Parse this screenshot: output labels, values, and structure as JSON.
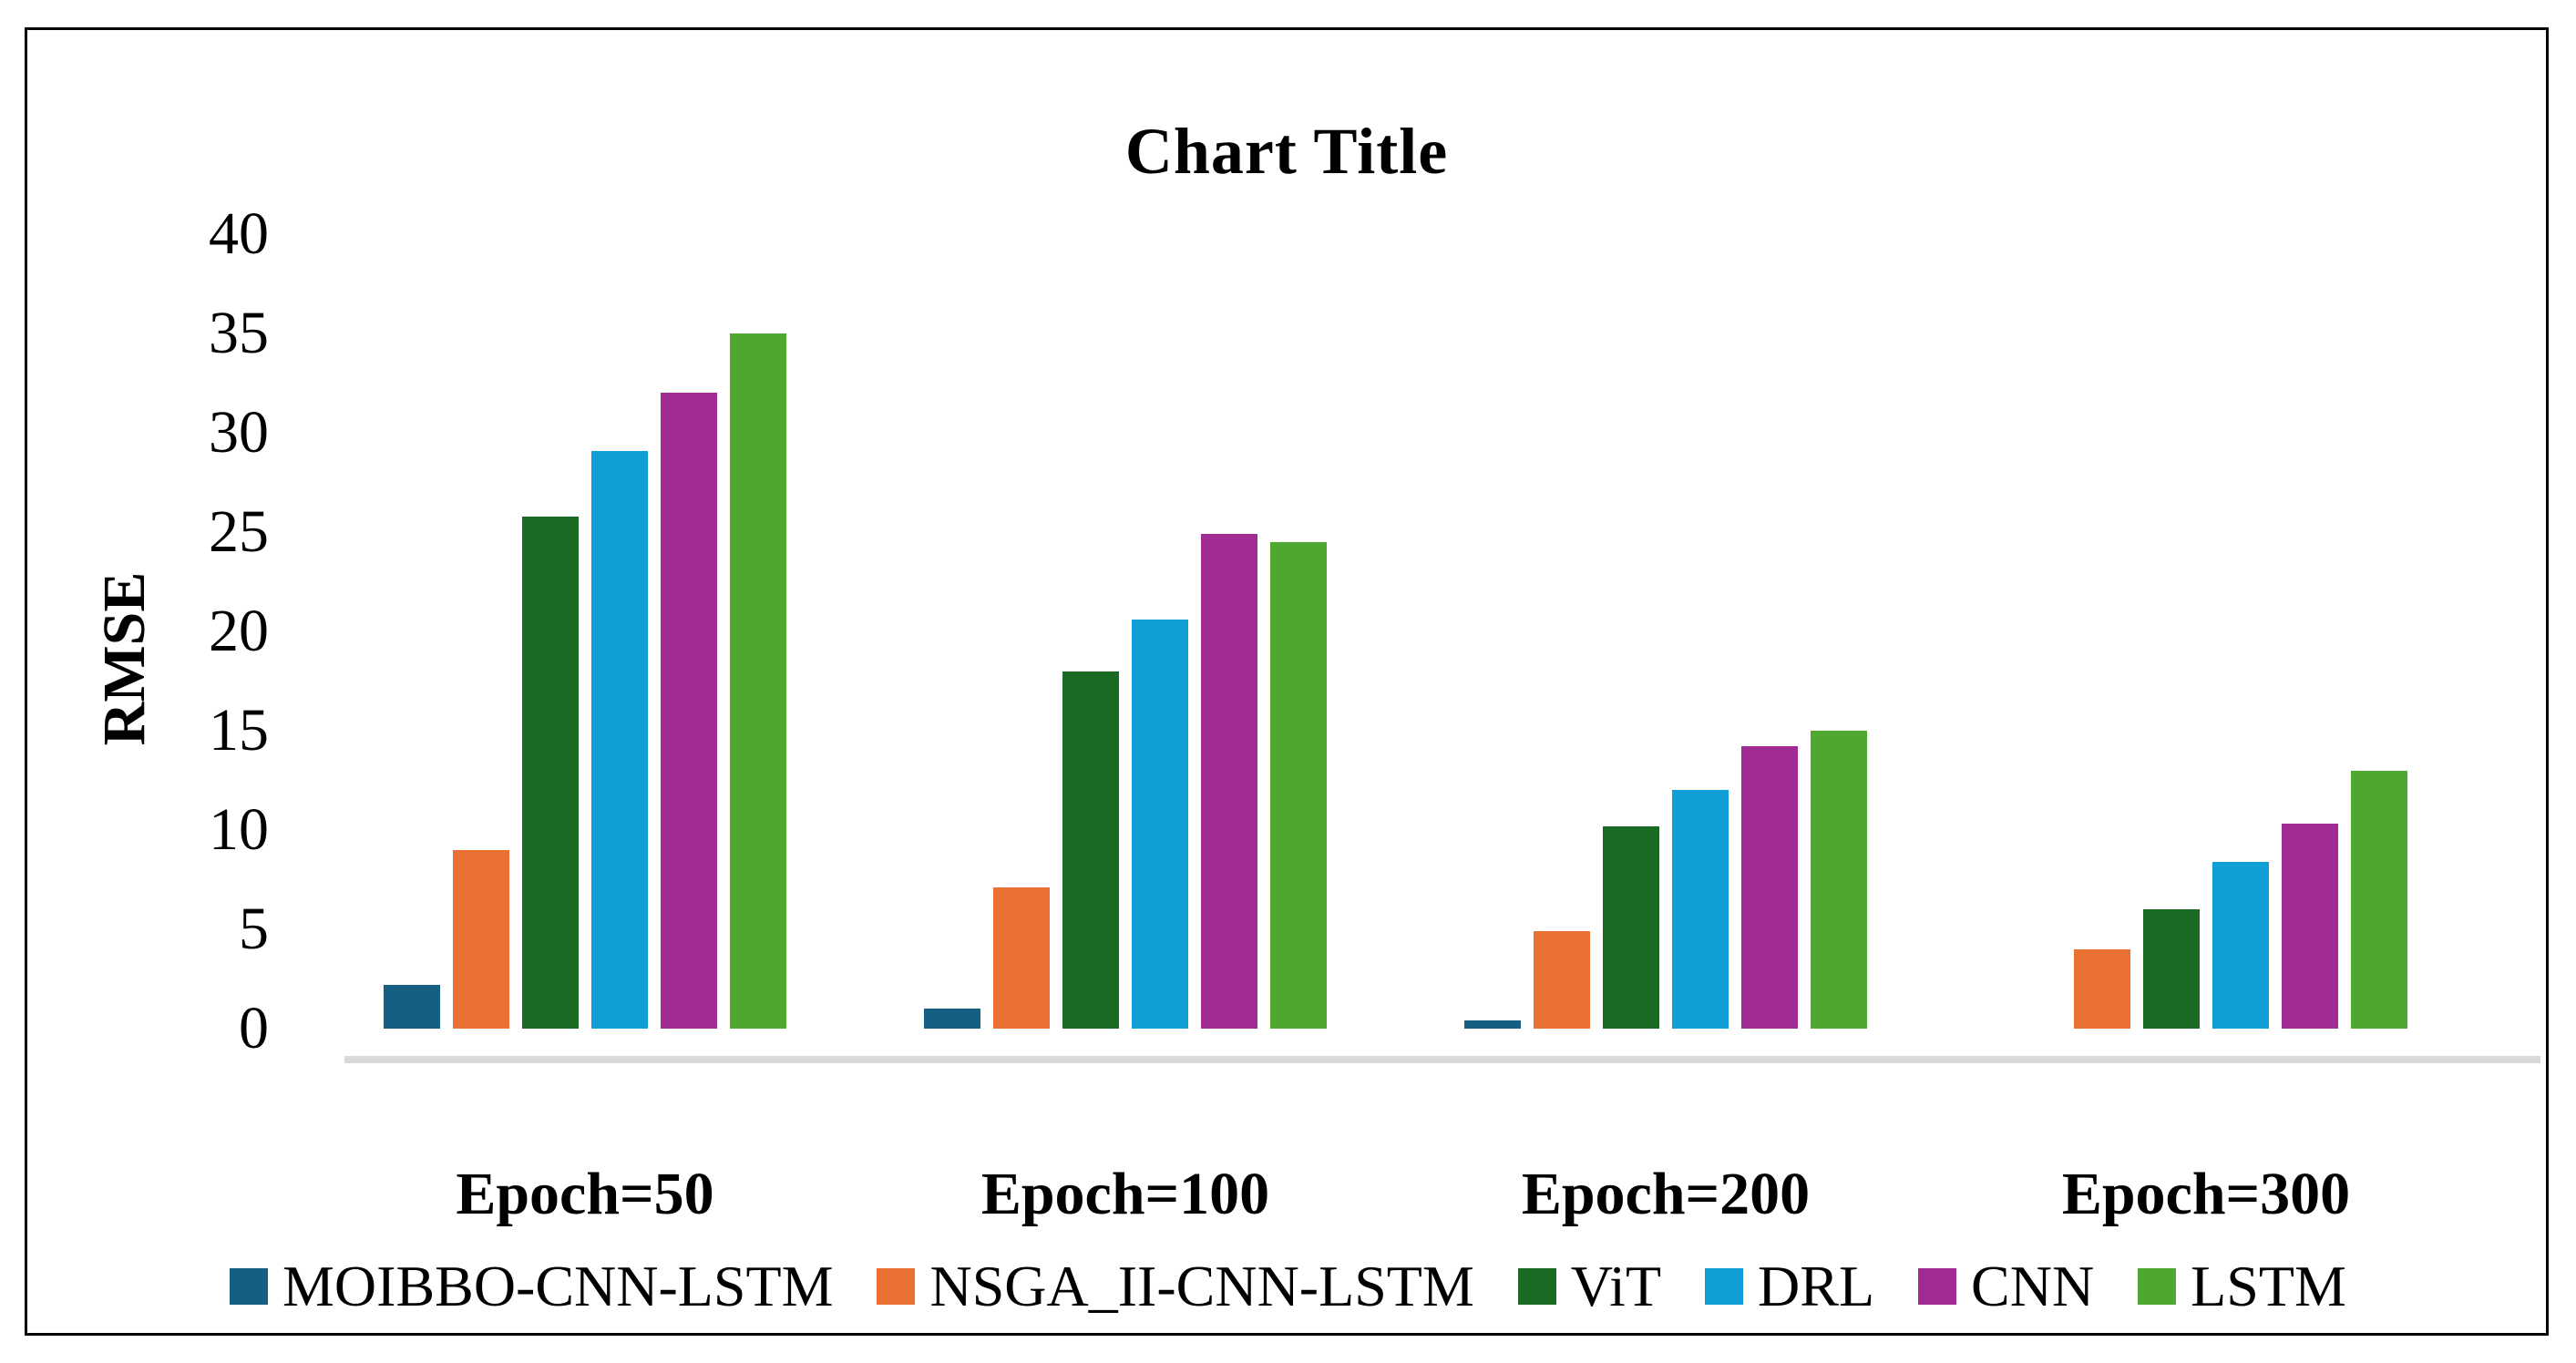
{
  "title": "Chart Title",
  "y_axis": {
    "label": "RMSE",
    "ticks": [
      40,
      35,
      30,
      25,
      20,
      15,
      10,
      5,
      0
    ]
  },
  "chart_data": {
    "type": "bar",
    "title": "Chart Title",
    "xlabel": "",
    "ylabel": "RMSE",
    "ylim": [
      0,
      40
    ],
    "grid": false,
    "legend_position": "bottom",
    "categories": [
      "Epoch=50",
      "Epoch=100",
      "Epoch=200",
      "Epoch=300"
    ],
    "series": [
      {
        "name": "MOIBBO-CNN-LSTM",
        "color": "#156082",
        "values": [
          2.2,
          1.0,
          0.4,
          0
        ]
      },
      {
        "name": "NSGA_II-CNN-LSTM",
        "color": "#E97132",
        "values": [
          9.0,
          7.1,
          4.9,
          4.0
        ]
      },
      {
        "name": "ViT",
        "color": "#196B24",
        "values": [
          25.8,
          18.0,
          10.2,
          6.0
        ]
      },
      {
        "name": "DRL",
        "color": "#0F9ED5",
        "values": [
          29.1,
          20.6,
          12.0,
          8.4
        ]
      },
      {
        "name": "CNN",
        "color": "#A02B93",
        "values": [
          32.0,
          24.9,
          14.2,
          10.3
        ]
      },
      {
        "name": "LSTM",
        "color": "#4EA72E",
        "values": [
          35.0,
          24.5,
          15.0,
          13.0
        ]
      }
    ]
  },
  "colors": {
    "background": "#FFFFFF",
    "border": "#000000",
    "axis_line": "#D9D9D9",
    "text": "#000000"
  }
}
